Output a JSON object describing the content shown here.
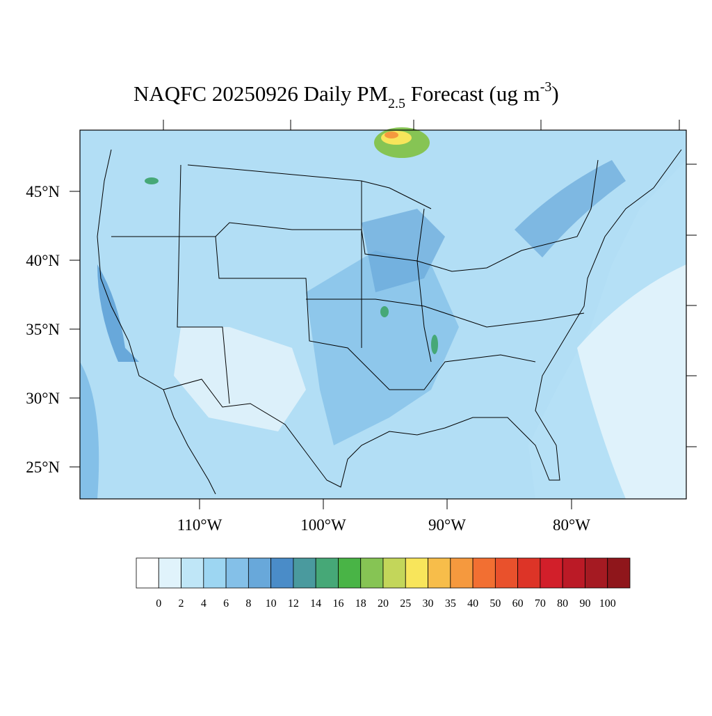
{
  "title": {
    "main": "NAQFC 20250926 Daily PM",
    "subscript": "2.5",
    "rest": " Forecast (ug m",
    "superscript": "-3",
    "close": ")"
  },
  "map": {
    "lat_labels": [
      "45°N",
      "40°N",
      "35°N",
      "30°N",
      "25°N"
    ],
    "lon_labels": [
      "110°W",
      "100°W",
      "90°W",
      "80°W"
    ]
  },
  "colorbar": {
    "levels": [
      0,
      2,
      4,
      6,
      8,
      10,
      12,
      14,
      16,
      18,
      20,
      25,
      30,
      35,
      40,
      50,
      60,
      70,
      80,
      90,
      100
    ],
    "colors": [
      "#ffffff",
      "#e0f3fb",
      "#bfe6f7",
      "#9dd6f2",
      "#84c0e8",
      "#68a8da",
      "#4a8cc8",
      "#4a9a9e",
      "#46a877",
      "#49b446",
      "#86c454",
      "#c3d65a",
      "#f8e55b",
      "#f7bd4a",
      "#f5993e",
      "#f26f32",
      "#e9512c",
      "#dd3427",
      "#d21f2a",
      "#bb1a26",
      "#a51a22",
      "#8f161b"
    ]
  }
}
